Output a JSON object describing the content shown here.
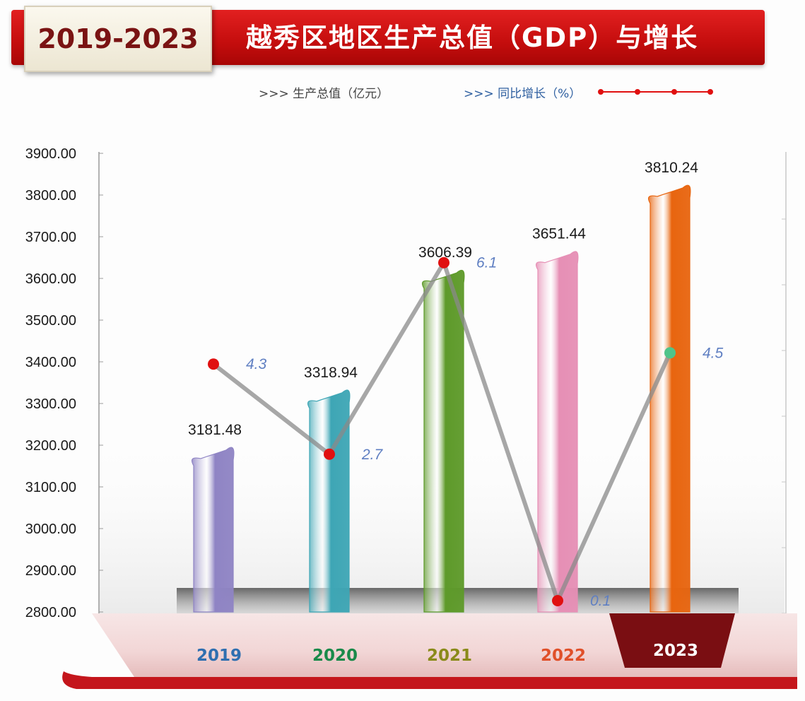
{
  "header": {
    "year_range": "2019-2023",
    "title": "越秀区地区生产总值（GDP）与增长"
  },
  "legend": {
    "gdp": ">>> 生产总值（亿元）",
    "growth": ">>> 同比增长（%）"
  },
  "colors": {
    "banner": "#c40d0d",
    "growth_line": "#8a8a8a",
    "growth_marker": "#e01010",
    "growth_marker_2023": "#4fc48a",
    "growth_label": "#5f7fc2",
    "bars": [
      "#8f84c4",
      "#3ea6b5",
      "#5e9a2a",
      "#e68fb5",
      "#e8650f"
    ],
    "category_labels": [
      "#2f6fb0",
      "#1a8a4a",
      "#8a8a1a",
      "#e0502a",
      "#ffffff"
    ]
  },
  "chart_data": {
    "type": "bar",
    "title": "越秀区地区生产总值（GDP）与增长",
    "categories": [
      "2019",
      "2020",
      "2021",
      "2022",
      "2023"
    ],
    "highlighted_category": "2023",
    "ylim": [
      2800,
      3900
    ],
    "yticks": [
      "3900.00",
      "3800.00",
      "3700.00",
      "3600.00",
      "3500.00",
      "3400.00",
      "3300.00",
      "3200.00",
      "3100.00",
      "3000.00",
      "2900.00",
      "2800.00"
    ],
    "series": [
      {
        "name": "生产总值（亿元）",
        "type": "bar",
        "values": [
          3181.48,
          3318.94,
          3606.39,
          3651.44,
          3810.24
        ],
        "labels": [
          "3181.48",
          "3318.94",
          "3606.39",
          "3651.44",
          "3810.24"
        ]
      },
      {
        "name": "同比增长（%）",
        "type": "line",
        "values": [
          4.3,
          2.7,
          6.1,
          0.1,
          4.5
        ],
        "labels": [
          "4.3",
          "2.7",
          "6.1",
          "0.1",
          "4.5"
        ],
        "ylim": [
          0,
          7
        ]
      }
    ]
  }
}
